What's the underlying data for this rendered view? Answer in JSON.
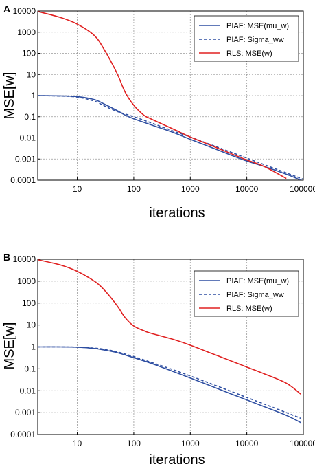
{
  "chart_data": [
    {
      "panel_label": "A",
      "type": "line",
      "xlabel": "iterations",
      "ylabel": "MSE[w]",
      "xscale": "log",
      "yscale": "log",
      "xlim": [
        2,
        100000
      ],
      "ylim": [
        0.0001,
        10000
      ],
      "x_ticks": [
        "10",
        "100",
        "1000",
        "10000",
        "100000"
      ],
      "y_ticks": [
        "10000",
        "1000",
        "100",
        "10",
        "1",
        "0.1",
        "0.01",
        "0.001",
        "0.0001"
      ],
      "grid": true,
      "legend_position": "top-right",
      "series": [
        {
          "name": "PIAF: MSE(mu_w)",
          "color": "#2f4fa2",
          "dash": "solid",
          "points": [
            [
              2,
              1
            ],
            [
              5,
              0.97
            ],
            [
              10,
              0.9
            ],
            [
              20,
              0.65
            ],
            [
              30,
              0.4
            ],
            [
              50,
              0.2
            ],
            [
              70,
              0.12
            ],
            [
              100,
              0.08
            ],
            [
              200,
              0.042
            ],
            [
              500,
              0.018
            ],
            [
              1000,
              0.0085
            ],
            [
              2000,
              0.0042
            ],
            [
              5000,
              0.0016
            ],
            [
              10000,
              0.0008
            ],
            [
              20000,
              0.00045
            ],
            [
              50000,
              0.00019
            ],
            [
              90000,
              0.0001
            ]
          ]
        },
        {
          "name": "PIAF: Sigma_ww",
          "color": "#2f4fa2",
          "dash": "dashed",
          "points": [
            [
              2,
              1
            ],
            [
              5,
              0.95
            ],
            [
              10,
              0.85
            ],
            [
              20,
              0.55
            ],
            [
              30,
              0.33
            ],
            [
              50,
              0.18
            ],
            [
              100,
              0.1
            ],
            [
              200,
              0.052
            ],
            [
              500,
              0.021
            ],
            [
              1000,
              0.011
            ],
            [
              2000,
              0.0055
            ],
            [
              5000,
              0.0022
            ],
            [
              10000,
              0.0011
            ],
            [
              20000,
              0.00055
            ],
            [
              50000,
              0.00022
            ],
            [
              100000,
              0.00011
            ]
          ]
        },
        {
          "name": "RLS: MSE(w)",
          "color": "#e02020",
          "dash": "solid",
          "points": [
            [
              2,
              9500
            ],
            [
              5,
              5000
            ],
            [
              10,
              2400
            ],
            [
              20,
              700
            ],
            [
              30,
              150
            ],
            [
              50,
              12
            ],
            [
              70,
              1.5
            ],
            [
              100,
              0.35
            ],
            [
              150,
              0.12
            ],
            [
              200,
              0.08
            ],
            [
              500,
              0.026
            ],
            [
              1000,
              0.011
            ],
            [
              2000,
              0.0052
            ],
            [
              5000,
              0.0019
            ],
            [
              10000,
              0.0009
            ],
            [
              20000,
              0.00045
            ],
            [
              50000,
              0.00012
            ]
          ]
        }
      ]
    },
    {
      "panel_label": "B",
      "type": "line",
      "xlabel": "iterations",
      "ylabel": "MSE[w]",
      "xscale": "log",
      "yscale": "log",
      "xlim": [
        2,
        100000
      ],
      "ylim": [
        0.0001,
        10000
      ],
      "x_ticks": [
        "10",
        "100",
        "1000",
        "10000",
        "100000"
      ],
      "y_ticks": [
        "10000",
        "1000",
        "100",
        "10",
        "1",
        "0.1",
        "0.01",
        "0.001",
        "0.0001"
      ],
      "grid": true,
      "legend_position": "top-right",
      "series": [
        {
          "name": "PIAF: MSE(mu_w)",
          "color": "#2f4fa2",
          "dash": "solid",
          "points": [
            [
              2,
              1
            ],
            [
              5,
              1
            ],
            [
              10,
              0.97
            ],
            [
              20,
              0.85
            ],
            [
              30,
              0.72
            ],
            [
              50,
              0.55
            ],
            [
              100,
              0.32
            ],
            [
              200,
              0.18
            ],
            [
              500,
              0.075
            ],
            [
              1000,
              0.038
            ],
            [
              2000,
              0.019
            ],
            [
              5000,
              0.0075
            ],
            [
              10000,
              0.0038
            ],
            [
              20000,
              0.0019
            ],
            [
              50000,
              0.00075
            ],
            [
              90000,
              0.00035
            ]
          ]
        },
        {
          "name": "PIAF: Sigma_ww",
          "color": "#2f4fa2",
          "dash": "dashed",
          "points": [
            [
              2,
              1
            ],
            [
              5,
              1
            ],
            [
              10,
              0.97
            ],
            [
              20,
              0.88
            ],
            [
              30,
              0.78
            ],
            [
              50,
              0.6
            ],
            [
              100,
              0.36
            ],
            [
              200,
              0.2
            ],
            [
              500,
              0.09
            ],
            [
              1000,
              0.047
            ],
            [
              2000,
              0.024
            ],
            [
              5000,
              0.0098
            ],
            [
              10000,
              0.0049
            ],
            [
              20000,
              0.0025
            ],
            [
              50000,
              0.001
            ],
            [
              90000,
              0.00055
            ]
          ]
        },
        {
          "name": "RLS: MSE(w)",
          "color": "#e02020",
          "dash": "solid",
          "points": [
            [
              2,
              9500
            ],
            [
              5,
              5500
            ],
            [
              10,
              2800
            ],
            [
              20,
              1000
            ],
            [
              30,
              400
            ],
            [
              50,
              80
            ],
            [
              70,
              22
            ],
            [
              100,
              9
            ],
            [
              150,
              5.5
            ],
            [
              200,
              4.2
            ],
            [
              500,
              2.2
            ],
            [
              1000,
              1.2
            ],
            [
              2000,
              0.6
            ],
            [
              5000,
              0.24
            ],
            [
              10000,
              0.12
            ],
            [
              20000,
              0.06
            ],
            [
              50000,
              0.022
            ],
            [
              90000,
              0.007
            ]
          ]
        }
      ]
    }
  ]
}
